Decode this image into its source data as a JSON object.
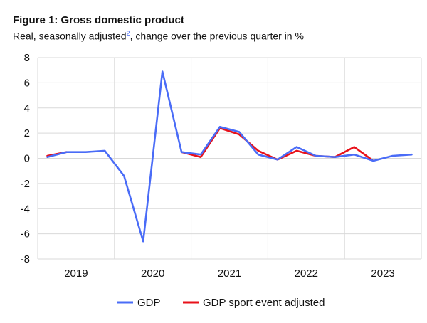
{
  "header": {
    "title": "Figure 1: Gross domestic product",
    "subtitle_prefix": "Real, seasonally adjusted",
    "footnote": "2",
    "subtitle_suffix": ", change over the previous quarter in %"
  },
  "colors": {
    "gdp": "#4a6cf7",
    "adjusted": "#e8111a",
    "grid": "#d9d9d9"
  },
  "chart_data": {
    "type": "line",
    "title": "Gross domestic product",
    "xlabel": "",
    "ylabel": "",
    "ylim": [
      -8,
      8
    ],
    "yticks": [
      -8,
      -6,
      -4,
      -2,
      0,
      2,
      4,
      6,
      8
    ],
    "year_labels": [
      "2019",
      "2020",
      "2021",
      "2022",
      "2023"
    ],
    "x": [
      "2019Q1",
      "2019Q2",
      "2019Q3",
      "2019Q4",
      "2020Q1",
      "2020Q2",
      "2020Q3",
      "2020Q4",
      "2021Q1",
      "2021Q2",
      "2021Q3",
      "2021Q4",
      "2022Q1",
      "2022Q2",
      "2022Q3",
      "2022Q4",
      "2023Q1",
      "2023Q2",
      "2023Q3",
      "2023Q4"
    ],
    "grid": true,
    "legend_position": "bottom",
    "series": [
      {
        "name": "GDP",
        "values": [
          0.1,
          0.5,
          0.5,
          0.6,
          -1.4,
          -6.6,
          6.9,
          0.5,
          0.3,
          2.5,
          2.1,
          0.3,
          -0.1,
          0.9,
          0.2,
          0.1,
          0.3,
          -0.2,
          0.2,
          0.3
        ]
      },
      {
        "name": "GDP sport event adjusted",
        "values": [
          0.2,
          0.5,
          null,
          null,
          null,
          null,
          null,
          0.5,
          0.1,
          2.4,
          1.9,
          0.6,
          -0.1,
          0.6,
          0.2,
          0.1,
          0.9,
          -0.2,
          null,
          null
        ]
      }
    ]
  }
}
